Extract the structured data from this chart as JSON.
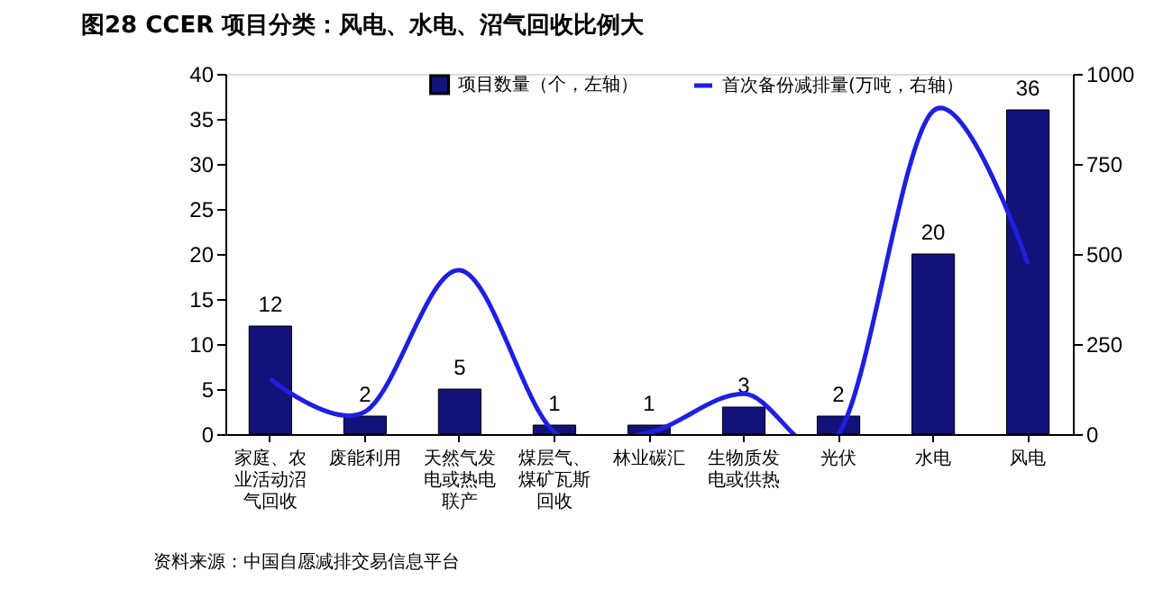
{
  "chart_data": {
    "type": "bar",
    "title": "图28 CCER 项目分类：风电、水电、沼气回收比例大",
    "categories": [
      "家庭、农业活动沼气回收",
      "废能利用",
      "天然气发电或热电联产",
      "煤层气、煤矿瓦斯回收",
      "林业碳汇",
      "生物质发电或供热",
      "光伏",
      "水电",
      "风电"
    ],
    "series": [
      {
        "name": "项目数量（个，左轴）",
        "color": "#12127a",
        "values": [
          12,
          2,
          5,
          1,
          1,
          3,
          2,
          20,
          36
        ],
        "value_labels": [
          "12",
          "2",
          "5",
          "1",
          "1",
          "3",
          "2",
          "20",
          "36"
        ]
      },
      {
        "name": "首次备份减排量(万吨，右轴）",
        "type": "line",
        "axis": "y2",
        "color": "#1f1fe0",
        "values": [
          153,
          62,
          455,
          5,
          5,
          112,
          0,
          897,
          472
        ]
      }
    ],
    "ylim": [
      0,
      40
    ],
    "yticks": [
      0,
      5,
      10,
      15,
      20,
      25,
      30,
      35,
      40
    ],
    "y2lim": [
      0,
      1000
    ],
    "y2ticks": [
      0,
      250,
      500,
      750,
      1000
    ],
    "grid": false,
    "legend": "top",
    "annotations": [
      "资料来源：中国自愿减排交易信息平台"
    ]
  }
}
